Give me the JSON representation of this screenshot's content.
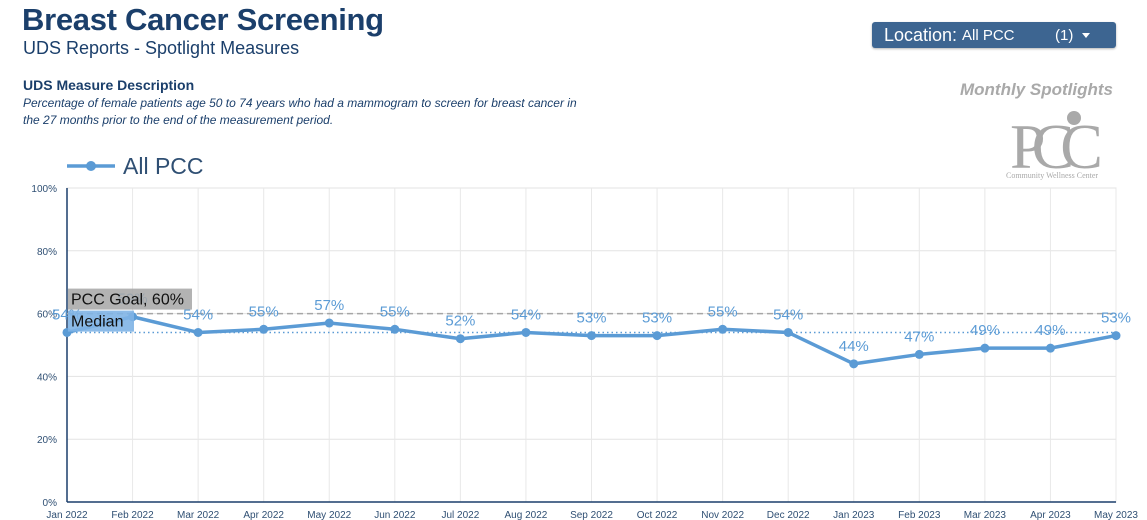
{
  "header": {
    "title": "Breast Cancer Screening",
    "subtitle": "UDS Reports - Spotlight Measures"
  },
  "description": {
    "heading": "UDS Measure Description",
    "text": "Percentage of female patients age 50 to 74 years who had a mammogram to screen for breast cancer in the 27 months prior to the end of the measurement period."
  },
  "location_filter": {
    "label": "Location:",
    "value": "All PCC",
    "count": "(1)"
  },
  "branding": {
    "spotlight_label": "Monthly Spotlights",
    "logo_text": "PCC",
    "logo_subtext": "Community Wellness Center",
    "logo_color": "#a9a9a9"
  },
  "chart_data": {
    "type": "line",
    "categories": [
      "Jan 2022",
      "Feb 2022",
      "Mar 2022",
      "Apr 2022",
      "May 2022",
      "Jun 2022",
      "Jul 2022",
      "Aug 2022",
      "Sep 2022",
      "Oct 2022",
      "Nov 2022",
      "Dec 2022",
      "Jan 2023",
      "Feb 2023",
      "Mar 2023",
      "Apr 2023",
      "May 2023"
    ],
    "series": [
      {
        "name": "All PCC",
        "color": "#5b9bd5",
        "values": [
          54,
          59,
          54,
          55,
          57,
          55,
          52,
          54,
          53,
          53,
          55,
          54,
          44,
          47,
          49,
          49,
          53
        ],
        "data_labels": [
          "54%",
          "59%",
          "54%",
          "55%",
          "57%",
          "55%",
          "52%",
          "54%",
          "53%",
          "53%",
          "55%",
          "54%",
          "44%",
          "47%",
          "49%",
          "49%",
          "53%"
        ]
      }
    ],
    "reference_lines": [
      {
        "label": "PCC Goal, 60%",
        "value": 60,
        "style": "dashed",
        "color": "#a6a6a6"
      },
      {
        "label": "Median",
        "value": 54,
        "style": "dotted",
        "color": "#5b9bd5"
      }
    ],
    "y_ticks": [
      "0%",
      "20%",
      "40%",
      "60%",
      "80%",
      "100%"
    ],
    "ylim": [
      0,
      100
    ],
    "grid": true,
    "legend_position": "top-left"
  }
}
